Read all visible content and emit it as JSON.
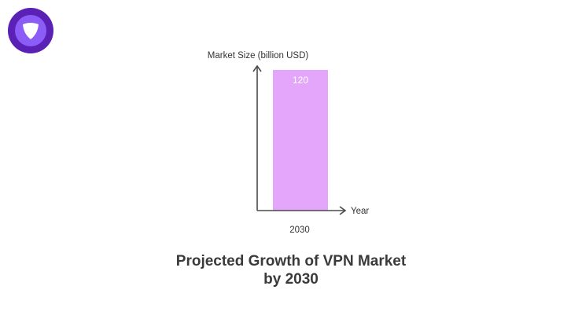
{
  "brand": {
    "logo_icon": "purple-shield-logo-icon",
    "colors": {
      "outer": "#5b21b6",
      "inner": "#8b5cf6",
      "mark": "#ffffff"
    }
  },
  "chart_data": {
    "type": "bar",
    "title_lines": [
      "Projected Growth of VPN Market",
      "by 2030"
    ],
    "xlabel": "Year",
    "ylabel": "Market Size (billion USD)",
    "categories": [
      "2030"
    ],
    "values": [
      120
    ],
    "data_labels": [
      "120"
    ],
    "ylim": [
      0,
      120
    ],
    "grid": false,
    "legend": "none",
    "colors": {
      "bar": "#e3a6fb",
      "axis": "#4a4a4a",
      "label_on_bar": "#ffffff",
      "text": "#333333"
    }
  }
}
